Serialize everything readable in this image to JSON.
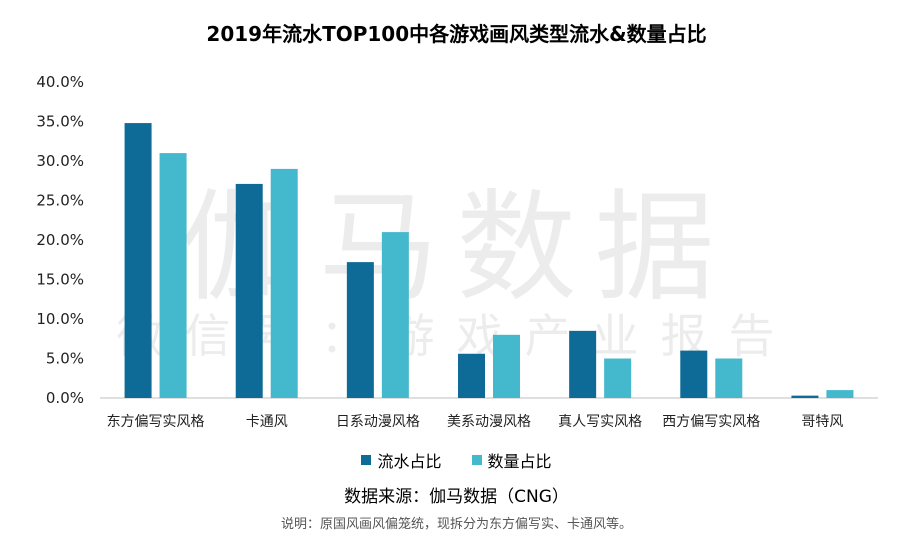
{
  "title": "2019年流水TOP100中各游戏画风类型流水&数量占比",
  "watermark": {
    "main": "伽马数据",
    "sub": "微信号：游戏产业报告"
  },
  "source": "数据来源：伽马数据（CNG）",
  "note": "说明：原国风画风偏笼统，现拆分为东方偏写实、卡通风等。",
  "colors": {
    "series1": "#0e6a96",
    "series2": "#44b8cc"
  },
  "chart_data": {
    "type": "bar",
    "title": "2019年流水TOP100中各游戏画风类型流水&数量占比",
    "categories": [
      "东方偏写实风格",
      "卡通风",
      "日系动漫风格",
      "美系动漫风格",
      "真人写实风格",
      "西方偏写实风格",
      "哥特风"
    ],
    "series": [
      {
        "name": "流水占比",
        "values": [
          34.8,
          27.1,
          17.2,
          5.6,
          8.5,
          6.0,
          0.3
        ]
      },
      {
        "name": "数量占比",
        "values": [
          31.0,
          29.0,
          21.0,
          8.0,
          5.0,
          5.0,
          1.0
        ]
      }
    ],
    "yticks": [
      "0.0%",
      "5.0%",
      "10.0%",
      "15.0%",
      "20.0%",
      "25.0%",
      "30.0%",
      "35.0%",
      "40.0%"
    ],
    "ylim": [
      0,
      40
    ],
    "legend": "bottom-center",
    "grid": false
  }
}
